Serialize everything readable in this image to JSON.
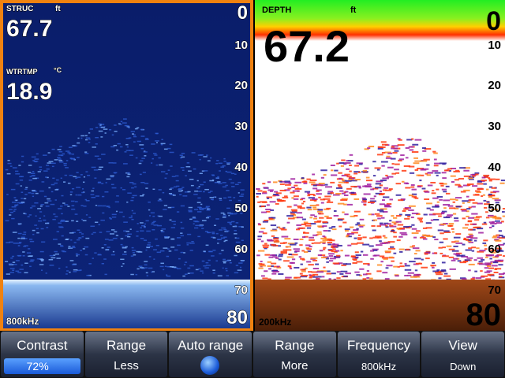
{
  "left_panel": {
    "struc_label": "STRUC",
    "struc_unit": "ft",
    "struc_value": "67.7",
    "temp_label": "WTRTMP",
    "temp_unit": "°C",
    "temp_value": "18.9",
    "scale": [
      "0",
      "10",
      "20",
      "30",
      "40",
      "50",
      "60",
      "70",
      "80"
    ],
    "frequency": "800kHz"
  },
  "right_panel": {
    "depth_label": "DEPTH",
    "depth_unit": "ft",
    "depth_value": "67.2",
    "scale": [
      "0",
      "10",
      "20",
      "30",
      "40",
      "50",
      "60",
      "70",
      "80"
    ],
    "frequency": "200kHz"
  },
  "buttons": [
    {
      "label": "Contrast",
      "sub": "72%"
    },
    {
      "label": "Range",
      "sub": "Less"
    },
    {
      "label": "Auto range"
    },
    {
      "label": "Range",
      "sub": "More"
    },
    {
      "label": "Frequency",
      "sub": "800kHz"
    },
    {
      "label": "View",
      "sub": "Down"
    }
  ]
}
